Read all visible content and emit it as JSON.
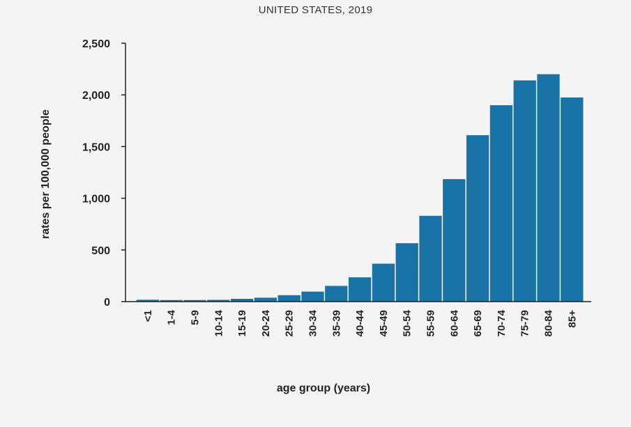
{
  "chart_data": {
    "type": "bar",
    "title": "UNITED STATES, 2019",
    "xlabel": "age group (years)",
    "ylabel": "rates per 100,000 people",
    "ylim": [
      0,
      2500
    ],
    "yticks": [
      "0",
      "500",
      "1,000",
      "1,500",
      "2,000",
      "2,500"
    ],
    "grid": false,
    "bar_color": "#1a73a6",
    "categories": [
      "<1",
      "1-4",
      "5-9",
      "10-14",
      "15-19",
      "20-24",
      "25-29",
      "30-34",
      "35-39",
      "40-44",
      "45-49",
      "50-54",
      "55-59",
      "60-64",
      "65-69",
      "70-74",
      "75-79",
      "80-84",
      "85+"
    ],
    "values": [
      18,
      15,
      15,
      17,
      27,
      38,
      62,
      97,
      152,
      235,
      367,
      565,
      830,
      1185,
      1610,
      1900,
      2140,
      2200,
      1975
    ]
  }
}
